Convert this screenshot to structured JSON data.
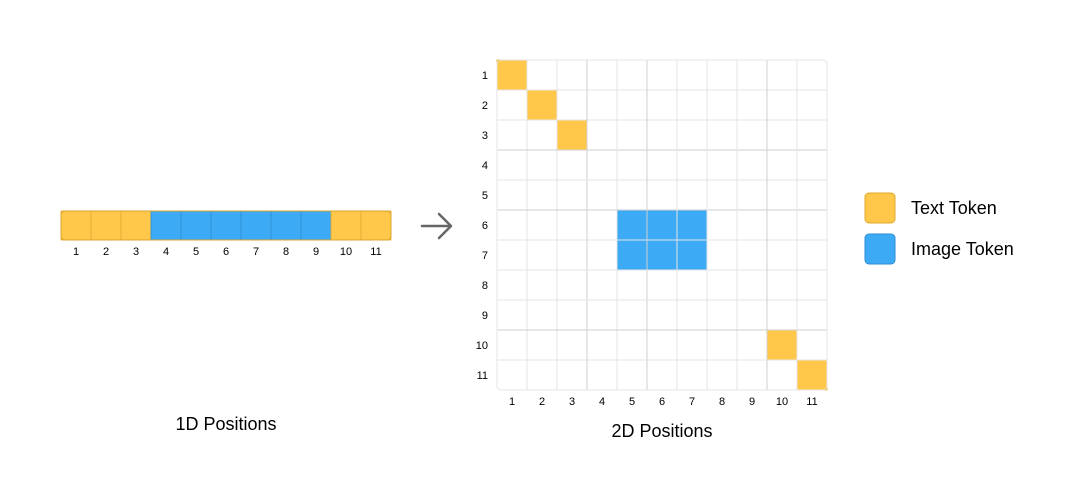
{
  "colors": {
    "text_token": "#FFC84A",
    "image_token": "#3DAAF5",
    "grid_line": "#E4E4E4",
    "grid_line_major": "#CFCFCF",
    "arrow": "#666666",
    "cell_border": "#E0A92F",
    "image_cell_border": "#2E8FD6"
  },
  "sequence": {
    "tokens": [
      "text",
      "text",
      "text",
      "image",
      "image",
      "image",
      "image",
      "image",
      "image",
      "text",
      "text"
    ],
    "labels": [
      "1",
      "2",
      "3",
      "4",
      "5",
      "6",
      "7",
      "8",
      "9",
      "10",
      "11"
    ]
  },
  "grid": {
    "row_labels": [
      "1",
      "2",
      "3",
      "4",
      "5",
      "6",
      "7",
      "8",
      "9",
      "10",
      "11"
    ],
    "col_labels": [
      "1",
      "2",
      "3",
      "4",
      "5",
      "6",
      "7",
      "8",
      "9",
      "10",
      "11"
    ],
    "text_cells": [
      [
        1,
        1
      ],
      [
        2,
        2
      ],
      [
        3,
        3
      ],
      [
        10,
        10
      ],
      [
        11,
        11
      ]
    ],
    "image_cells": [
      [
        6,
        5
      ],
      [
        6,
        6
      ],
      [
        6,
        7
      ],
      [
        7,
        5
      ],
      [
        7,
        6
      ],
      [
        7,
        7
      ]
    ]
  },
  "titles": {
    "one_d": "1D Positions",
    "two_d": "2D Positions"
  },
  "legend": {
    "text_label": "Text Token",
    "image_label": "Image Token"
  },
  "icons": {
    "arrow": "arrow-right-icon"
  }
}
